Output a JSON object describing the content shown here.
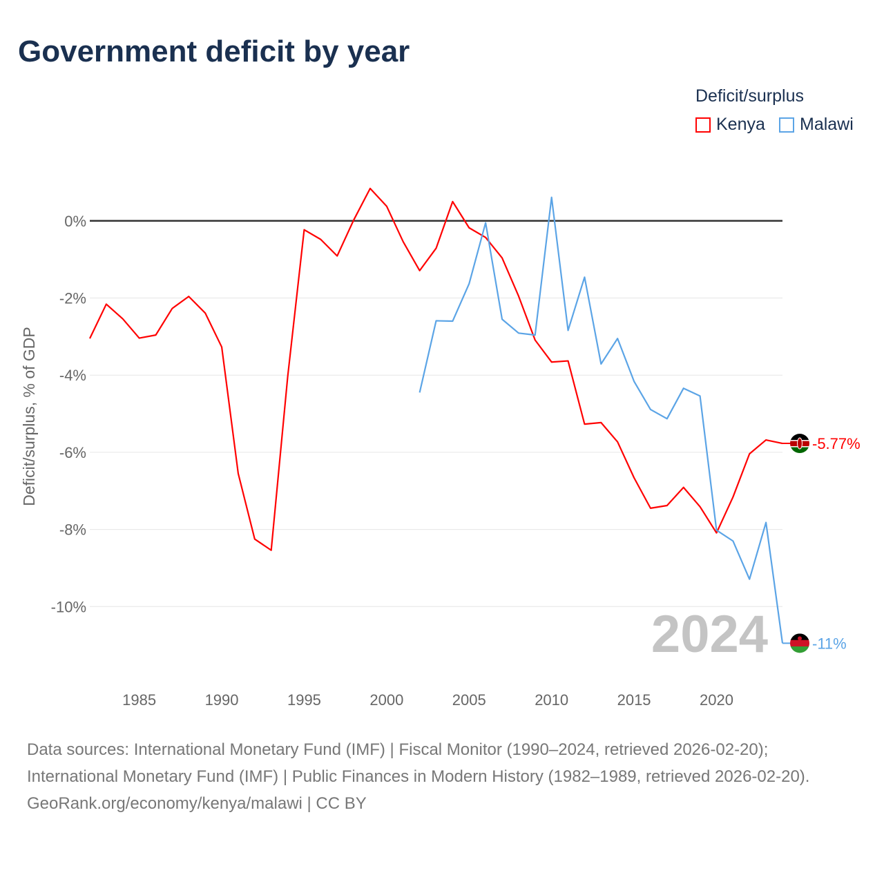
{
  "title": "Government deficit by year",
  "legend": {
    "title": "Deficit/surplus",
    "items": [
      {
        "name": "Kenya",
        "color": "#ff0000"
      },
      {
        "name": "Malawi",
        "color": "#5ba4e6"
      }
    ]
  },
  "year_watermark": "2024",
  "footer": {
    "sources": "Data sources: International Monetary Fund (IMF) | Fiscal Monitor (1990–2024, retrieved 2026-02-20); International Monetary Fund (IMF) | Public Finances in Modern History (1982–1989, retrieved 2026-02-20).",
    "credit": "GeoRank.org/economy/kenya/malawi | CC BY"
  },
  "chart_data": {
    "type": "line",
    "title": "Government deficit by year",
    "ylabel": "Deficit/surplus, % of GDP",
    "xlabel": "",
    "xlim": [
      1982,
      2024
    ],
    "ylim": [
      -12,
      1.25
    ],
    "x_ticks": [
      1985,
      1990,
      1995,
      2000,
      2005,
      2010,
      2015,
      2020
    ],
    "y_ticks": [
      0,
      -2,
      -4,
      -6,
      -8,
      -10
    ],
    "y_tick_labels": [
      "0%",
      "-2%",
      "-4%",
      "-6%",
      "-8%",
      "-10%"
    ],
    "grid": true,
    "legend_position": "top-right",
    "series": [
      {
        "name": "Kenya",
        "color": "#ff0000",
        "end_label": "-5.77%",
        "start_year": 1982,
        "values": [
          -3.05,
          -2.16,
          -2.54,
          -3.04,
          -2.96,
          -2.27,
          -1.96,
          -2.39,
          -3.27,
          -6.55,
          -8.25,
          -8.54,
          -4.04,
          -0.23,
          -0.48,
          -0.91,
          0.02,
          0.84,
          0.38,
          -0.54,
          -1.29,
          -0.71,
          0.5,
          -0.18,
          -0.43,
          -0.96,
          -1.95,
          -3.09,
          -3.66,
          -3.63,
          -5.27,
          -5.23,
          -5.73,
          -6.66,
          -7.45,
          -7.38,
          -6.91,
          -7.41,
          -8.09,
          -7.16,
          -6.04,
          -5.68,
          -5.77
        ]
      },
      {
        "name": "Malawi",
        "color": "#5ba4e6",
        "end_label": "-11%",
        "start_year": 2002,
        "values": [
          -4.45,
          -2.59,
          -2.6,
          -1.63,
          -0.05,
          -2.55,
          -2.91,
          -2.96,
          0.61,
          -2.84,
          -1.46,
          -3.71,
          -3.05,
          -4.16,
          -4.89,
          -5.13,
          -4.34,
          -4.54,
          -8.02,
          -8.3,
          -9.29,
          -7.82,
          -10.95
        ]
      }
    ]
  }
}
